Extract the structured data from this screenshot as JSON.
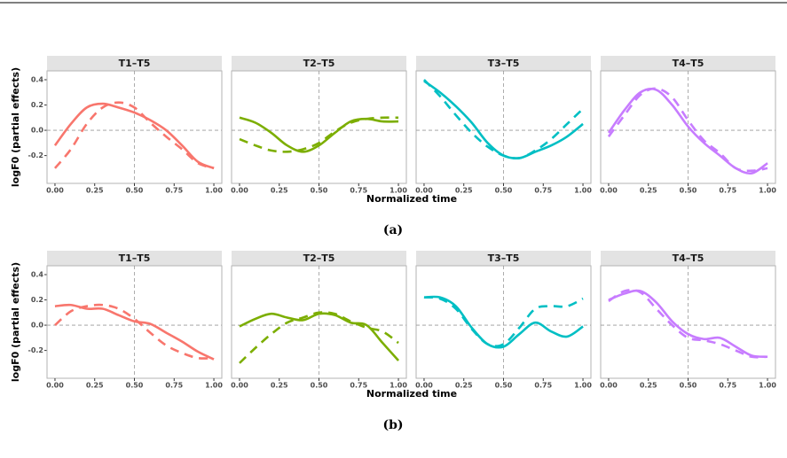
{
  "chart_data": [
    {
      "type": "line",
      "caption": "(a)",
      "xlabel": "Normalized time",
      "ylabel": "logF0 (partial effects)",
      "xlim": [
        -0.05,
        1.05
      ],
      "ylim": [
        -0.42,
        0.47
      ],
      "xticks": [
        {
          "value": 0,
          "label": "0.00"
        },
        {
          "value": 0.25,
          "label": "0.25"
        },
        {
          "value": 0.5,
          "label": "0.50"
        },
        {
          "value": 0.75,
          "label": "0.75"
        },
        {
          "value": 1,
          "label": "1.00"
        }
      ],
      "yticks": [
        -0.2,
        {
          "value": 0,
          "label": "0.0"
        },
        0.2,
        0.4
      ],
      "vline": 0.5,
      "hline": 0,
      "x": [
        0,
        0.1,
        0.2,
        0.3,
        0.4,
        0.5,
        0.6,
        0.7,
        0.8,
        0.9,
        1
      ],
      "panels": [
        {
          "title": "T1–T5",
          "series": [
            {
              "color": "#F8766D",
              "dashed": false,
              "values": [
                -0.12,
                0.05,
                0.18,
                0.21,
                0.18,
                0.14,
                0.08,
                0.0,
                -0.12,
                -0.25,
                -0.3
              ]
            },
            {
              "color": "#F8766D",
              "dashed": true,
              "values": [
                -0.3,
                -0.15,
                0.05,
                0.18,
                0.22,
                0.18,
                0.06,
                -0.05,
                -0.15,
                -0.26,
                -0.3
              ]
            }
          ]
        },
        {
          "title": "T2–T5",
          "series": [
            {
              "color": "#7CAE00",
              "dashed": false,
              "values": [
                0.1,
                0.06,
                -0.02,
                -0.12,
                -0.17,
                -0.12,
                -0.02,
                0.07,
                0.09,
                0.07,
                0.07
              ]
            },
            {
              "color": "#7CAE00",
              "dashed": true,
              "values": [
                -0.07,
                -0.12,
                -0.16,
                -0.17,
                -0.15,
                -0.1,
                -0.01,
                0.06,
                0.09,
                0.1,
                0.1
              ]
            }
          ]
        },
        {
          "title": "T3–T5",
          "series": [
            {
              "color": "#00BFC4",
              "dashed": false,
              "values": [
                0.39,
                0.3,
                0.19,
                0.06,
                -0.1,
                -0.2,
                -0.22,
                -0.17,
                -0.12,
                -0.05,
                0.05
              ]
            },
            {
              "color": "#00BFC4",
              "dashed": true,
              "values": [
                0.4,
                0.27,
                0.12,
                -0.02,
                -0.13,
                -0.2,
                -0.22,
                -0.16,
                -0.07,
                0.05,
                0.17
              ]
            }
          ]
        },
        {
          "title": "T4–T5",
          "series": [
            {
              "color": "#C77CFF",
              "dashed": false,
              "values": [
                -0.02,
                0.16,
                0.3,
                0.32,
                0.2,
                0.03,
                -0.1,
                -0.2,
                -0.3,
                -0.34,
                -0.26
              ]
            },
            {
              "color": "#C77CFF",
              "dashed": true,
              "values": [
                -0.05,
                0.12,
                0.28,
                0.33,
                0.26,
                0.08,
                -0.08,
                -0.18,
                -0.3,
                -0.32,
                -0.3
              ]
            }
          ]
        }
      ]
    },
    {
      "type": "line",
      "caption": "(b)",
      "xlabel": "Normalized time",
      "ylabel": "logF0 (partial effects)",
      "xlim": [
        -0.05,
        1.05
      ],
      "ylim": [
        -0.42,
        0.47
      ],
      "xticks": [
        {
          "value": 0,
          "label": "0.00"
        },
        {
          "value": 0.25,
          "label": "0.25"
        },
        {
          "value": 0.5,
          "label": "0.50"
        },
        {
          "value": 0.75,
          "label": "0.75"
        },
        {
          "value": 1,
          "label": "1.00"
        }
      ],
      "yticks": [
        -0.2,
        {
          "value": 0,
          "label": "0.0"
        },
        0.2,
        0.4
      ],
      "vline": 0.5,
      "hline": 0,
      "x": [
        0,
        0.1,
        0.2,
        0.3,
        0.4,
        0.5,
        0.6,
        0.7,
        0.8,
        0.9,
        1
      ],
      "panels": [
        {
          "title": "T1–T5",
          "series": [
            {
              "color": "#F8766D",
              "dashed": false,
              "values": [
                0.15,
                0.16,
                0.13,
                0.13,
                0.08,
                0.03,
                0.01,
                -0.06,
                -0.13,
                -0.21,
                -0.27
              ]
            },
            {
              "color": "#F8766D",
              "dashed": true,
              "values": [
                0.0,
                0.11,
                0.15,
                0.16,
                0.13,
                0.05,
                -0.06,
                -0.16,
                -0.22,
                -0.26,
                -0.26
              ]
            }
          ]
        },
        {
          "title": "T2–T5",
          "series": [
            {
              "color": "#7CAE00",
              "dashed": false,
              "values": [
                -0.01,
                0.05,
                0.09,
                0.06,
                0.04,
                0.09,
                0.08,
                0.02,
                0.0,
                -0.14,
                -0.28
              ]
            },
            {
              "color": "#7CAE00",
              "dashed": true,
              "values": [
                -0.3,
                -0.18,
                -0.07,
                0.02,
                0.06,
                0.1,
                0.09,
                0.03,
                -0.02,
                -0.05,
                -0.14
              ]
            }
          ]
        },
        {
          "title": "T3–T5",
          "series": [
            {
              "color": "#00BFC4",
              "dashed": false,
              "values": [
                0.22,
                0.22,
                0.15,
                -0.02,
                -0.15,
                -0.17,
                -0.07,
                0.02,
                -0.05,
                -0.09,
                -0.01
              ]
            },
            {
              "color": "#00BFC4",
              "dashed": true,
              "values": [
                0.22,
                0.21,
                0.13,
                -0.03,
                -0.15,
                -0.15,
                -0.02,
                0.13,
                0.15,
                0.15,
                0.21
              ]
            }
          ]
        },
        {
          "title": "T4–T5",
          "series": [
            {
              "color": "#C77CFF",
              "dashed": false,
              "values": [
                0.2,
                0.25,
                0.27,
                0.18,
                0.03,
                -0.07,
                -0.11,
                -0.1,
                -0.17,
                -0.24,
                -0.25
              ]
            },
            {
              "color": "#C77CFF",
              "dashed": true,
              "values": [
                0.19,
                0.27,
                0.26,
                0.13,
                0.0,
                -0.1,
                -0.12,
                -0.15,
                -0.2,
                -0.25,
                -0.25
              ]
            }
          ]
        }
      ]
    }
  ]
}
